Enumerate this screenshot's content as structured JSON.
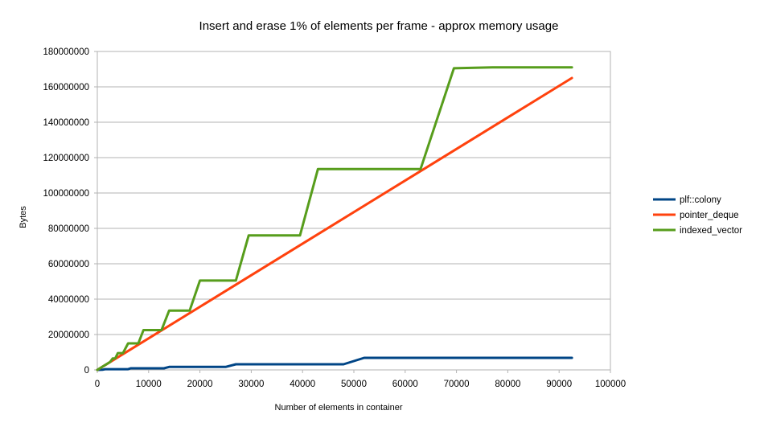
{
  "chart_data": {
    "type": "line",
    "title": "Insert and erase 1% of elements per frame - approx memory usage",
    "xlabel": "Number of elements in container",
    "ylabel": "Bytes",
    "xlim": [
      0,
      100000
    ],
    "ylim": [
      0,
      180000000
    ],
    "xticks": [
      "0",
      "10000",
      "20000",
      "30000",
      "40000",
      "50000",
      "60000",
      "70000",
      "80000",
      "90000",
      "100000"
    ],
    "yticks": [
      "0",
      "20000000",
      "40000000",
      "60000000",
      "80000000",
      "100000000",
      "120000000",
      "140000000",
      "160000000",
      "180000000"
    ],
    "grid": true,
    "legend_position": "right",
    "series": [
      {
        "name": "plf::colony",
        "color": "#004586",
        "points": [
          [
            0,
            0
          ],
          [
            1000,
            100000
          ],
          [
            1500,
            400000
          ],
          [
            6000,
            400000
          ],
          [
            6500,
            900000
          ],
          [
            13000,
            900000
          ],
          [
            14000,
            1700000
          ],
          [
            25000,
            1700000
          ],
          [
            27000,
            3200000
          ],
          [
            48000,
            3200000
          ],
          [
            52000,
            6800000
          ],
          [
            92500,
            6800000
          ]
        ]
      },
      {
        "name": "pointer_deque",
        "color": "#ff420e",
        "points": [
          [
            0,
            0
          ],
          [
            92500,
            165000000
          ]
        ]
      },
      {
        "name": "indexed_vector",
        "color": "#579d1c",
        "points": [
          [
            0,
            0
          ],
          [
            2500,
            4500000
          ],
          [
            3000,
            6500000
          ],
          [
            3500,
            6500000
          ],
          [
            4000,
            9500000
          ],
          [
            5000,
            9500000
          ],
          [
            6000,
            15000000
          ],
          [
            8000,
            15000000
          ],
          [
            9000,
            22500000
          ],
          [
            12500,
            22500000
          ],
          [
            14000,
            33500000
          ],
          [
            18000,
            33500000
          ],
          [
            20000,
            50500000
          ],
          [
            27000,
            50500000
          ],
          [
            29500,
            76000000
          ],
          [
            39500,
            76000000
          ],
          [
            43000,
            113500000
          ],
          [
            63000,
            113500000
          ],
          [
            69500,
            170500000
          ],
          [
            77000,
            171000000
          ],
          [
            92500,
            171000000
          ]
        ]
      }
    ]
  }
}
